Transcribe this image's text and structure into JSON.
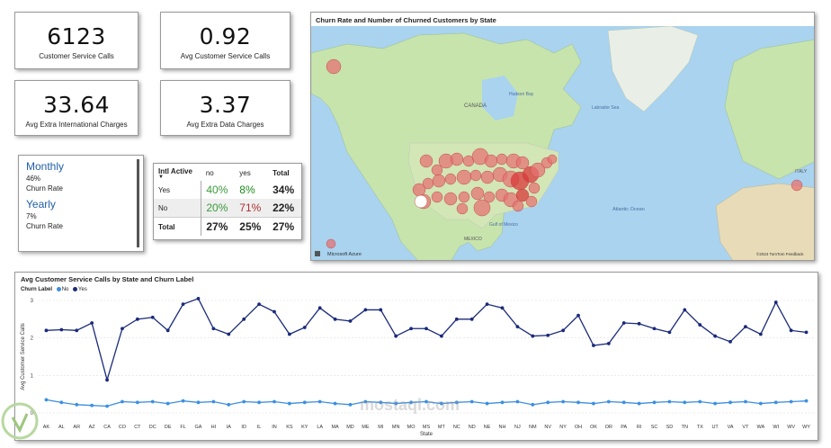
{
  "kpis": {
    "customer_service_calls": {
      "value": "6123",
      "label": "Customer Service Calls"
    },
    "avg_customer_service_calls": {
      "value": "0.92",
      "label": "Avg Customer Service Calls"
    },
    "avg_extra_international_charges": {
      "value": "33.64",
      "label": "Avg Extra International Charges"
    },
    "avg_extra_data_charges": {
      "value": "3.37",
      "label": "Avg Extra Data Charges"
    }
  },
  "contract": [
    {
      "name": "Monthly",
      "pct": "46%",
      "sub": "Churn Rate"
    },
    {
      "name": "Yearly",
      "pct": "7%",
      "sub": "Churn Rate"
    }
  ],
  "intl_table": {
    "corner": "Intl Active",
    "headers": [
      "no",
      "yes",
      "Total"
    ],
    "rows": [
      {
        "label": "Yes",
        "cells": [
          "40%",
          "8%",
          "34%"
        ]
      },
      {
        "label": "No",
        "cells": [
          "20%",
          "71%",
          "22%"
        ]
      },
      {
        "label": "Total",
        "cells": [
          "27%",
          "25%",
          "27%"
        ]
      }
    ]
  },
  "map": {
    "title": "Churn Rate and Number of Churned Customers by State",
    "labels": {
      "canada": "CANADA",
      "hudson_bay": "Hudson Bay",
      "labrador_sea": "Labrador Sea",
      "atlantic_ocean": "Atlantic Ocean",
      "gulf_of_mexico": "Gulf of\nMexico",
      "mexico": "MEXICO",
      "italy": "ITALY"
    },
    "attribution": "Microsoft Azure",
    "copyright": "©2024 TomTom Feedback"
  },
  "colors": {
    "yes_series": "#1a2a7a",
    "no_series": "#3c8fe0",
    "bubble": "#e57373",
    "bubble_dark": "#d9383a",
    "water": "#a9d3ef",
    "land": "#cde8b0",
    "canada_land": "#c5e2ac"
  },
  "chart_data": {
    "type": "line",
    "title": "Avg Customer Service Calls by State and Churn Label",
    "legend_title": "Churn Label",
    "xlabel": "State",
    "ylabel": "Avg Customer Service Calls",
    "ylim": [
      0,
      3
    ],
    "yticks": [
      0,
      1,
      2,
      3
    ],
    "legend_position": "top-left",
    "categories": [
      "AK",
      "AL",
      "AR",
      "AZ",
      "CA",
      "CO",
      "CT",
      "DC",
      "DE",
      "FL",
      "GA",
      "HI",
      "IA",
      "ID",
      "IL",
      "IN",
      "KS",
      "KY",
      "LA",
      "MA",
      "MD",
      "ME",
      "MI",
      "MN",
      "MO",
      "MS",
      "MT",
      "NC",
      "ND",
      "NE",
      "NH",
      "NJ",
      "NM",
      "NV",
      "NY",
      "OH",
      "OK",
      "OR",
      "PA",
      "RI",
      "SC",
      "SD",
      "TN",
      "TX",
      "UT",
      "VA",
      "VT",
      "WA",
      "WI",
      "WV",
      "WY"
    ],
    "series": [
      {
        "name": "No",
        "values": [
          0.35,
          0.28,
          0.22,
          0.2,
          0.18,
          0.3,
          0.28,
          0.3,
          0.25,
          0.32,
          0.28,
          0.3,
          0.22,
          0.3,
          0.28,
          0.3,
          0.25,
          0.28,
          0.3,
          0.25,
          0.22,
          0.3,
          0.28,
          0.25,
          0.28,
          0.3,
          0.25,
          0.28,
          0.3,
          0.25,
          0.28,
          0.3,
          0.22,
          0.28,
          0.3,
          0.28,
          0.25,
          0.3,
          0.28,
          0.25,
          0.28,
          0.3,
          0.28,
          0.3,
          0.25,
          0.28,
          0.3,
          0.25,
          0.28,
          0.3,
          0.32
        ]
      },
      {
        "name": "Yes",
        "values": [
          2.2,
          2.22,
          2.2,
          2.4,
          0.88,
          2.25,
          2.5,
          2.55,
          2.2,
          2.9,
          3.05,
          2.25,
          2.1,
          2.5,
          2.9,
          2.7,
          2.1,
          2.28,
          2.8,
          2.5,
          2.45,
          2.75,
          2.75,
          2.05,
          2.25,
          2.25,
          2.05,
          2.5,
          2.5,
          2.9,
          2.8,
          2.3,
          2.05,
          2.07,
          2.2,
          2.6,
          1.8,
          1.85,
          2.4,
          2.38,
          2.25,
          2.15,
          2.75,
          2.35,
          2.05,
          1.9,
          2.3,
          2.1,
          2.95,
          2.2,
          2.15
        ]
      }
    ]
  },
  "watermark": "mostaql.com"
}
